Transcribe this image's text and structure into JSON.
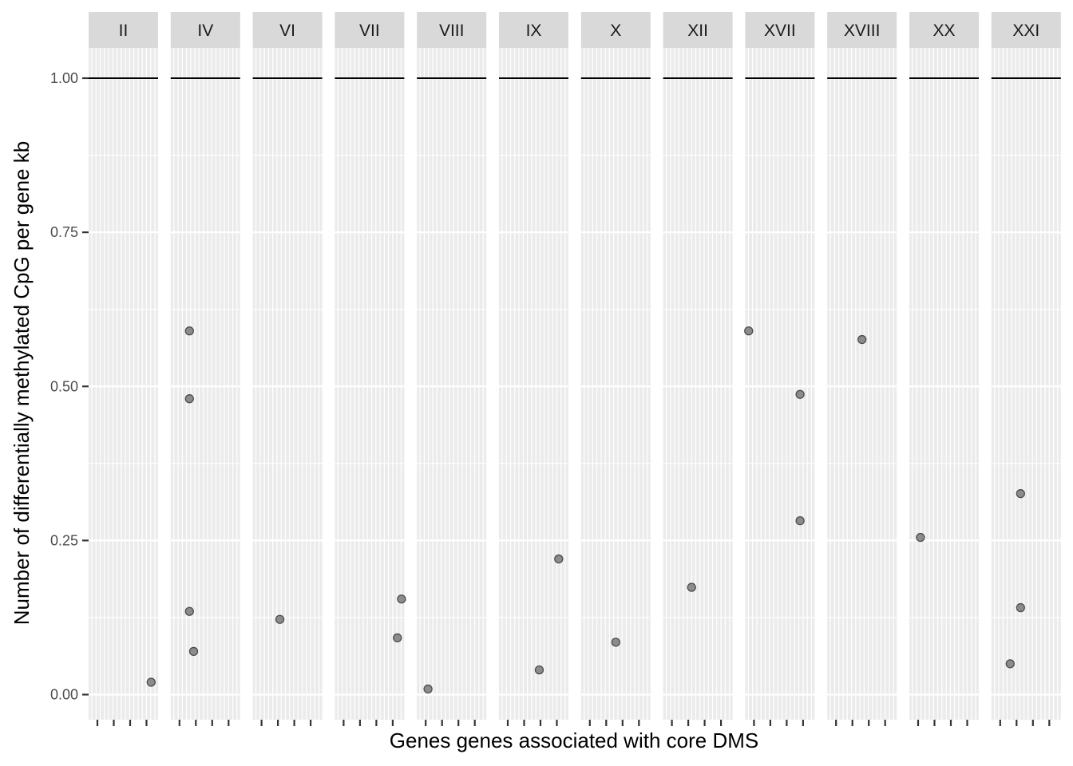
{
  "chart_data": {
    "type": "scatter",
    "facets": [
      "II",
      "IV",
      "VI",
      "VII",
      "VIII",
      "IX",
      "X",
      "XII",
      "XVII",
      "XVIII",
      "XX",
      "XXI"
    ],
    "xlabel": "Genes genes associated with core DMS",
    "ylabel": "Number of differentially methylated CpG per gene kb",
    "ylim": [
      -0.04,
      1.07
    ],
    "yticks": [
      0,
      0.25,
      0.5,
      0.75,
      1.0
    ],
    "ytick_labels": [
      "0.00",
      "0.25",
      "0.50",
      "0.75",
      "1.00"
    ],
    "reference_line": 1.0,
    "grid": true,
    "legend": "none",
    "points": [
      {
        "facet": "II",
        "x": 0.9,
        "y": 0.02
      },
      {
        "facet": "IV",
        "x": 0.27,
        "y": 0.59
      },
      {
        "facet": "IV",
        "x": 0.27,
        "y": 0.48
      },
      {
        "facet": "IV",
        "x": 0.27,
        "y": 0.135
      },
      {
        "facet": "IV",
        "x": 0.33,
        "y": 0.07
      },
      {
        "facet": "VI",
        "x": 0.39,
        "y": 0.122
      },
      {
        "facet": "VII",
        "x": 0.9,
        "y": 0.092
      },
      {
        "facet": "VII",
        "x": 0.96,
        "y": 0.155
      },
      {
        "facet": "VIII",
        "x": 0.16,
        "y": 0.009
      },
      {
        "facet": "IX",
        "x": 0.58,
        "y": 0.04
      },
      {
        "facet": "IX",
        "x": 0.86,
        "y": 0.22
      },
      {
        "facet": "X",
        "x": 0.5,
        "y": 0.085
      },
      {
        "facet": "XII",
        "x": 0.41,
        "y": 0.174
      },
      {
        "facet": "XVII",
        "x": 0.05,
        "y": 0.59
      },
      {
        "facet": "XVII",
        "x": 0.79,
        "y": 0.487
      },
      {
        "facet": "XVII",
        "x": 0.79,
        "y": 0.282
      },
      {
        "facet": "XVIII",
        "x": 0.5,
        "y": 0.576
      },
      {
        "facet": "XX",
        "x": 0.16,
        "y": 0.255
      },
      {
        "facet": "XXI",
        "x": 0.27,
        "y": 0.05
      },
      {
        "facet": "XXI",
        "x": 0.42,
        "y": 0.326
      },
      {
        "facet": "XXI",
        "x": 0.42,
        "y": 0.141
      }
    ],
    "colors": {
      "panel_background": "#ebebeb",
      "strip_background": "#d9d9d9",
      "grid": "#ffffff",
      "reference_line": "#000000",
      "point_fill": "#8c8c8c",
      "point_stroke": "#4d4d4d",
      "tick": "#333333"
    }
  }
}
